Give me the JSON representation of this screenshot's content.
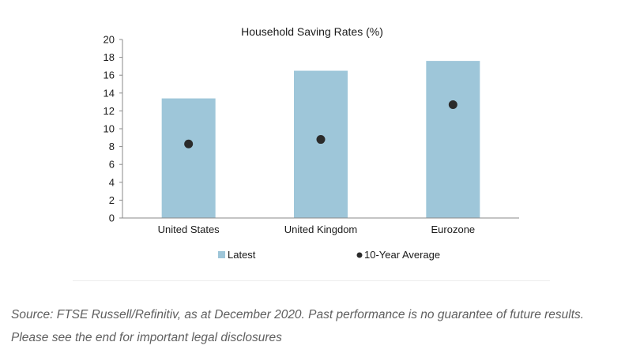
{
  "chart_data": {
    "type": "bar",
    "title": "Household Saving Rates (%)",
    "categories": [
      "United States",
      "United Kingdom",
      "Eurozone"
    ],
    "series": [
      {
        "name": "Latest",
        "kind": "bar",
        "color": "#9ec6d9",
        "values": [
          13.4,
          16.5,
          17.6
        ]
      },
      {
        "name": "10-Year Average",
        "kind": "marker",
        "color": "#2b2b2b",
        "values": [
          8.3,
          8.8,
          12.7
        ]
      }
    ],
    "ylim": [
      0,
      20
    ],
    "yticks": [
      0,
      2,
      4,
      6,
      8,
      10,
      12,
      14,
      16,
      18,
      20
    ],
    "xlabel": "",
    "ylabel": "",
    "grid": false,
    "legend": {
      "position": "bottom",
      "items": [
        "Latest",
        "10-Year Average"
      ]
    }
  },
  "footer": {
    "source": "Source: FTSE Russell/Refinitiv, as at December 2020. Past performance is no guarantee of future results.",
    "disclosure": "Please see the end for important legal disclosures"
  }
}
